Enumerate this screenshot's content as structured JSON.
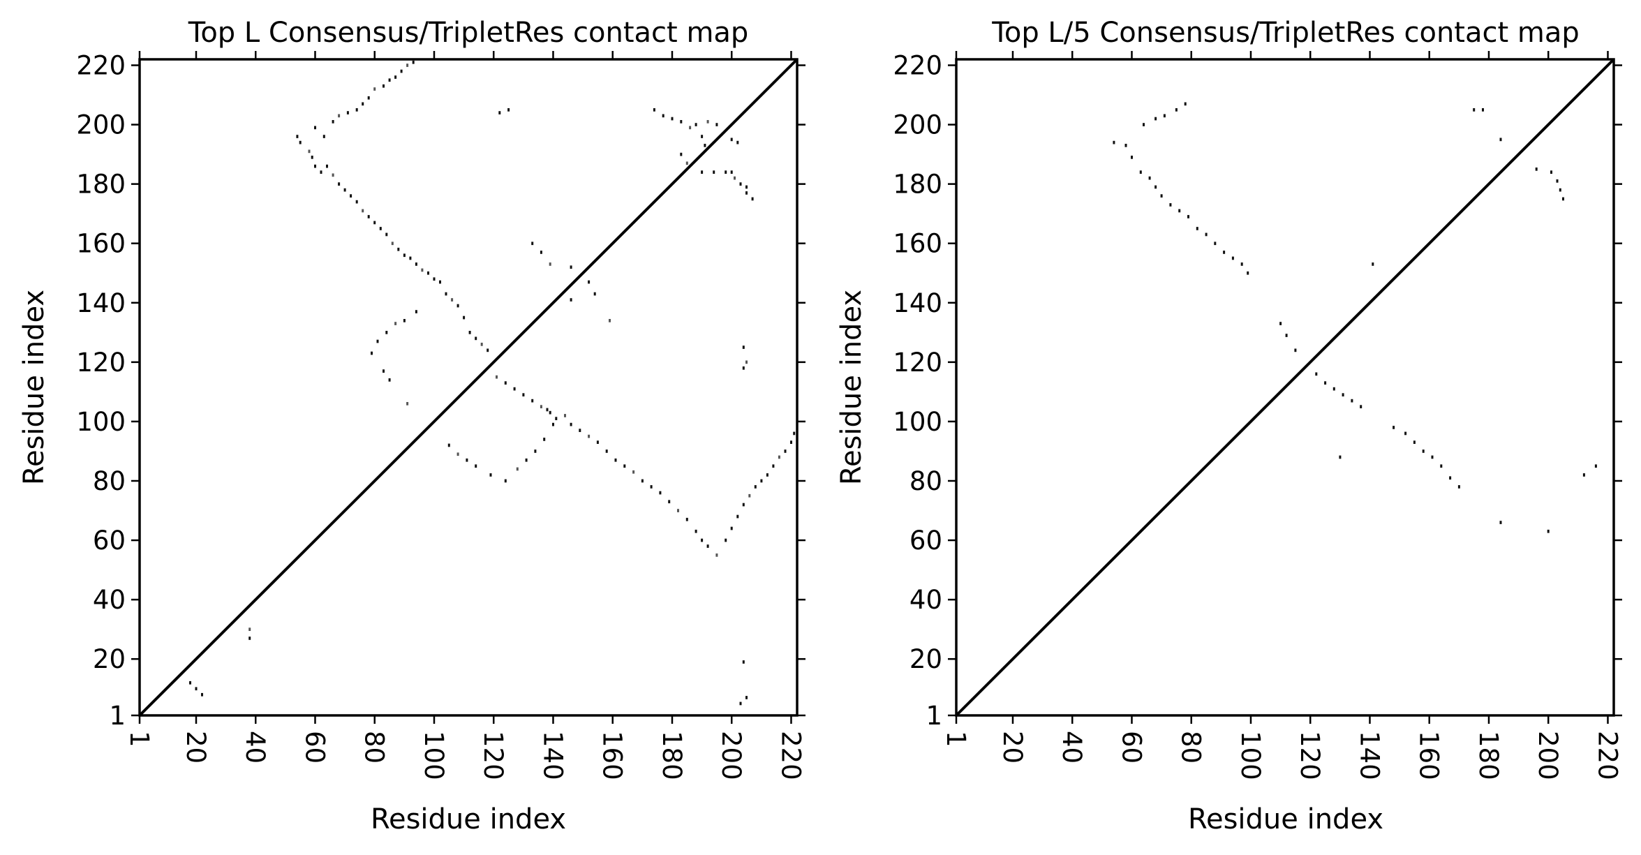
{
  "chart_data": [
    {
      "type": "heatmap",
      "title": "Top L Consensus/TripletRes contact map",
      "xlabel": "Residue index",
      "ylabel": "Residue index",
      "xlim": [
        1,
        222
      ],
      "ylim": [
        1,
        222
      ],
      "x_ticks": [
        1,
        20,
        40,
        60,
        80,
        100,
        120,
        140,
        160,
        180,
        200,
        220
      ],
      "y_ticks": [
        1,
        20,
        40,
        60,
        80,
        100,
        120,
        140,
        160,
        180,
        200,
        220
      ],
      "x_tick_labels": [
        "1",
        "20",
        "40",
        "60",
        "80",
        "100",
        "120",
        "140",
        "160",
        "180",
        "200",
        "220"
      ],
      "y_tick_labels": [
        "1",
        "20",
        "40",
        "60",
        "80",
        "100",
        "120",
        "140",
        "160",
        "180",
        "200",
        "220"
      ],
      "diagonal": true,
      "grid": false,
      "contacts": [
        [
          54,
          196
        ],
        [
          55,
          194
        ],
        [
          58,
          191
        ],
        [
          59,
          189
        ],
        [
          60,
          186
        ],
        [
          62,
          184
        ],
        [
          64,
          186
        ],
        [
          66,
          183
        ],
        [
          68,
          180
        ],
        [
          70,
          178
        ],
        [
          72,
          176
        ],
        [
          74,
          174
        ],
        [
          76,
          171
        ],
        [
          78,
          169
        ],
        [
          80,
          167
        ],
        [
          82,
          165
        ],
        [
          84,
          163
        ],
        [
          86,
          160
        ],
        [
          88,
          158
        ],
        [
          90,
          156
        ],
        [
          92,
          155
        ],
        [
          94,
          153
        ],
        [
          96,
          151
        ],
        [
          98,
          150
        ],
        [
          100,
          148
        ],
        [
          102,
          147
        ],
        [
          104,
          143
        ],
        [
          106,
          141
        ],
        [
          108,
          139
        ],
        [
          110,
          135
        ],
        [
          112,
          130
        ],
        [
          114,
          128
        ],
        [
          116,
          126
        ],
        [
          118,
          124
        ],
        [
          60,
          199
        ],
        [
          63,
          196
        ],
        [
          66,
          201
        ],
        [
          68,
          203
        ],
        [
          71,
          204
        ],
        [
          74,
          205
        ],
        [
          76,
          207
        ],
        [
          78,
          209
        ],
        [
          80,
          212
        ],
        [
          83,
          213
        ],
        [
          85,
          215
        ],
        [
          87,
          216
        ],
        [
          89,
          218
        ],
        [
          91,
          220
        ],
        [
          93,
          221
        ],
        [
          79,
          123
        ],
        [
          81,
          127
        ],
        [
          84,
          130
        ],
        [
          87,
          133
        ],
        [
          90,
          134
        ],
        [
          94,
          137
        ],
        [
          83,
          117
        ],
        [
          85,
          114
        ],
        [
          91,
          106
        ],
        [
          122,
          204
        ],
        [
          125,
          205
        ],
        [
          133,
          160
        ],
        [
          136,
          157
        ],
        [
          139,
          153
        ],
        [
          146,
          152
        ],
        [
          152,
          147
        ],
        [
          154,
          143
        ],
        [
          146,
          141
        ],
        [
          159,
          134
        ],
        [
          174,
          205
        ],
        [
          177,
          203
        ],
        [
          180,
          202
        ],
        [
          183,
          201
        ],
        [
          186,
          199
        ],
        [
          188,
          200
        ],
        [
          190,
          196
        ],
        [
          191,
          193
        ],
        [
          183,
          190
        ],
        [
          185,
          187
        ],
        [
          190,
          184
        ],
        [
          194,
          184
        ],
        [
          198,
          184
        ],
        [
          200,
          184
        ],
        [
          201,
          182
        ],
        [
          203,
          180
        ],
        [
          205,
          177
        ],
        [
          207,
          175
        ],
        [
          205,
          179
        ],
        [
          192,
          201
        ],
        [
          195,
          200
        ],
        [
          200,
          195
        ],
        [
          202,
          194
        ],
        [
          204,
          125
        ],
        [
          205,
          120
        ],
        [
          204,
          118
        ],
        [
          18,
          12
        ],
        [
          20,
          10
        ],
        [
          22,
          8
        ],
        [
          38,
          30
        ],
        [
          38,
          27
        ],
        [
          204,
          19
        ],
        [
          205,
          7
        ],
        [
          203,
          5
        ],
        [
          121,
          115
        ],
        [
          124,
          113
        ],
        [
          127,
          111
        ],
        [
          130,
          109
        ],
        [
          133,
          107
        ],
        [
          136,
          105
        ],
        [
          139,
          103
        ],
        [
          141,
          101
        ],
        [
          146,
          99
        ],
        [
          149,
          97
        ],
        [
          152,
          95
        ],
        [
          155,
          93
        ],
        [
          158,
          90
        ],
        [
          161,
          87
        ],
        [
          164,
          85
        ],
        [
          167,
          83
        ],
        [
          170,
          80
        ],
        [
          173,
          78
        ],
        [
          176,
          76
        ],
        [
          179,
          73
        ],
        [
          182,
          70
        ],
        [
          185,
          67
        ],
        [
          188,
          63
        ],
        [
          190,
          60
        ],
        [
          192,
          58
        ],
        [
          195,
          55
        ],
        [
          198,
          60
        ],
        [
          200,
          64
        ],
        [
          202,
          68
        ],
        [
          204,
          72
        ],
        [
          206,
          75
        ],
        [
          208,
          78
        ],
        [
          210,
          80
        ],
        [
          212,
          82
        ],
        [
          214,
          85
        ],
        [
          216,
          88
        ],
        [
          218,
          90
        ],
        [
          220,
          93
        ],
        [
          221,
          96
        ],
        [
          105,
          92
        ],
        [
          108,
          89
        ],
        [
          111,
          87
        ],
        [
          114,
          85
        ],
        [
          119,
          82
        ],
        [
          124,
          80
        ],
        [
          128,
          84
        ],
        [
          131,
          87
        ],
        [
          134,
          90
        ],
        [
          137,
          94
        ],
        [
          140,
          99
        ],
        [
          144,
          102
        ],
        [
          138,
          104
        ]
      ]
    },
    {
      "type": "heatmap",
      "title": "Top L/5 Consensus/TripletRes contact map",
      "xlabel": "Residue index",
      "ylabel": "Residue index",
      "xlim": [
        1,
        222
      ],
      "ylim": [
        1,
        222
      ],
      "x_ticks": [
        1,
        20,
        40,
        60,
        80,
        100,
        120,
        140,
        160,
        180,
        200,
        220
      ],
      "y_ticks": [
        1,
        20,
        40,
        60,
        80,
        100,
        120,
        140,
        160,
        180,
        200,
        220
      ],
      "x_tick_labels": [
        "1",
        "20",
        "40",
        "60",
        "80",
        "100",
        "120",
        "140",
        "160",
        "180",
        "200",
        "220"
      ],
      "y_tick_labels": [
        "1",
        "20",
        "40",
        "60",
        "80",
        "100",
        "120",
        "140",
        "160",
        "180",
        "200",
        "220"
      ],
      "diagonal": true,
      "grid": false,
      "contacts": [
        [
          54,
          194
        ],
        [
          58,
          193
        ],
        [
          60,
          189
        ],
        [
          63,
          184
        ],
        [
          66,
          182
        ],
        [
          68,
          179
        ],
        [
          70,
          176
        ],
        [
          73,
          173
        ],
        [
          76,
          171
        ],
        [
          79,
          169
        ],
        [
          82,
          165
        ],
        [
          85,
          163
        ],
        [
          88,
          160
        ],
        [
          91,
          157
        ],
        [
          94,
          155
        ],
        [
          97,
          153
        ],
        [
          99,
          150
        ],
        [
          64,
          200
        ],
        [
          68,
          202
        ],
        [
          71,
          203
        ],
        [
          75,
          205
        ],
        [
          78,
          207
        ],
        [
          110,
          133
        ],
        [
          112,
          129
        ],
        [
          115,
          124
        ],
        [
          141,
          153
        ],
        [
          175,
          205
        ],
        [
          178,
          205
        ],
        [
          184,
          195
        ],
        [
          196,
          185
        ],
        [
          201,
          184
        ],
        [
          203,
          181
        ],
        [
          204,
          178
        ],
        [
          205,
          175
        ],
        [
          122,
          116
        ],
        [
          125,
          113
        ],
        [
          128,
          111
        ],
        [
          131,
          109
        ],
        [
          134,
          107
        ],
        [
          137,
          105
        ],
        [
          148,
          98
        ],
        [
          152,
          96
        ],
        [
          155,
          93
        ],
        [
          158,
          90
        ],
        [
          161,
          88
        ],
        [
          164,
          85
        ],
        [
          167,
          81
        ],
        [
          170,
          78
        ],
        [
          130,
          88
        ],
        [
          184,
          66
        ],
        [
          200,
          63
        ],
        [
          212,
          82
        ],
        [
          216,
          85
        ]
      ]
    }
  ]
}
